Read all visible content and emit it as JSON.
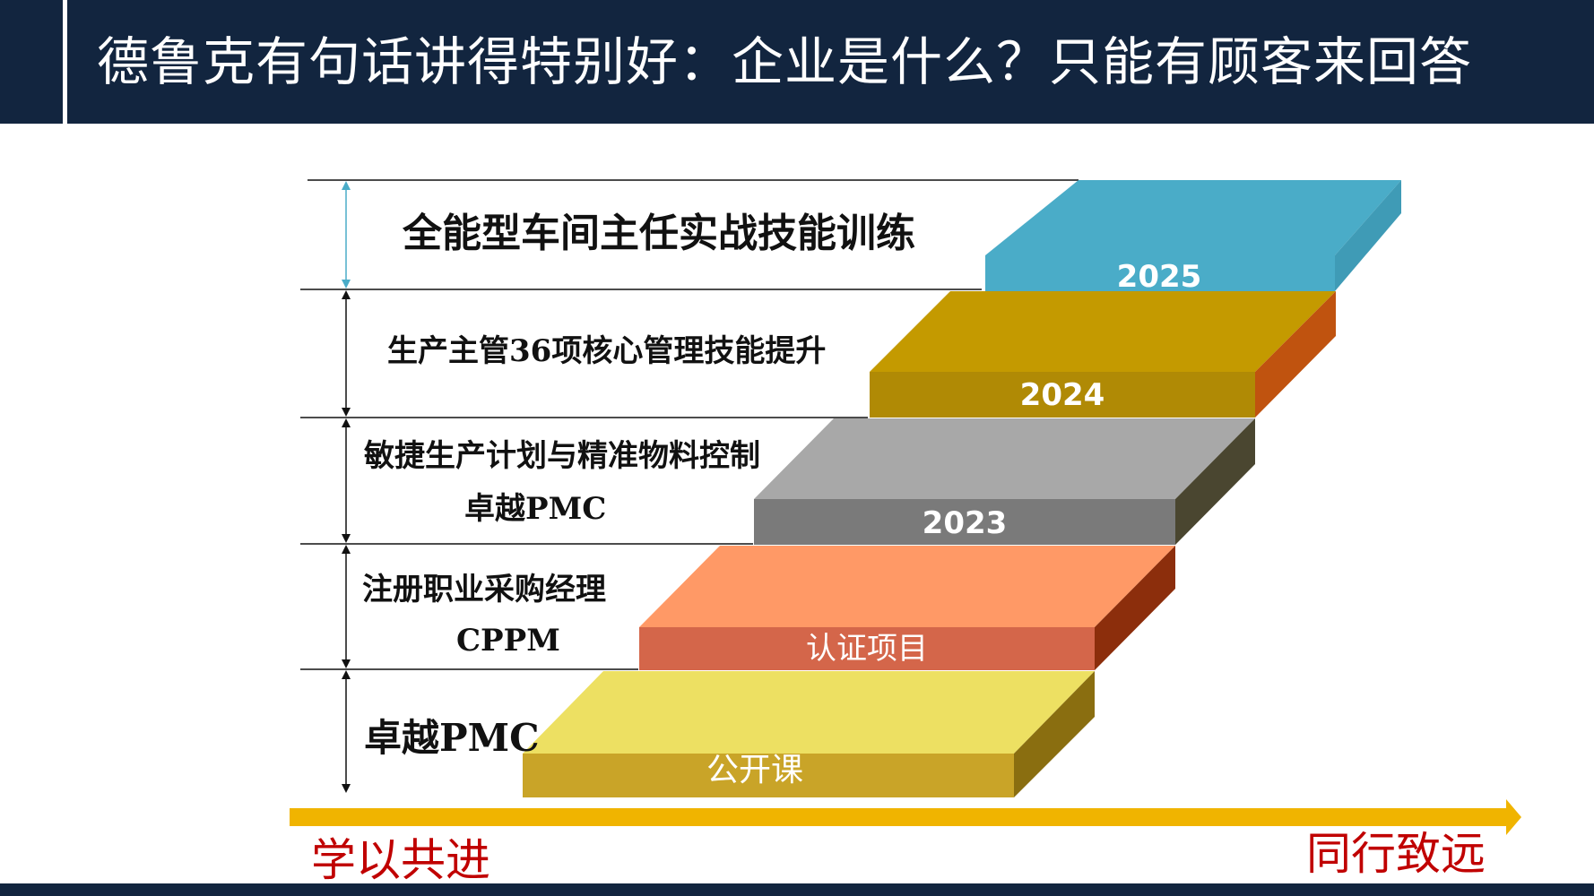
{
  "title": "德鲁克有句话讲得特别好：企业是什么？只能有顾客来回答",
  "levels": [
    {
      "lines": [
        "卓越PMC"
      ],
      "step_label": "公开课"
    },
    {
      "lines": [
        "注册职业采购经理",
        "CPPM"
      ],
      "step_label": "认证项目"
    },
    {
      "lines": [
        "敏捷生产计划与精准物料控制",
        "卓越PMC"
      ],
      "step_label": "2023"
    },
    {
      "lines": [
        "生产主管36项核心管理技能提升"
      ],
      "step_label": "2024"
    },
    {
      "lines": [
        "全能型车间主任实战技能训练"
      ],
      "step_label": "2025"
    }
  ],
  "footer": {
    "left_slogan": "学以共进",
    "right_slogan": "同行致远"
  },
  "colors": {
    "header_bg": "#12253f",
    "arrow": "#f0b400",
    "slogan": "#c00000",
    "steps": [
      {
        "top": "#ede062",
        "front": "#c9a428",
        "side": "#8a6e10"
      },
      {
        "top": "#ff9966",
        "front": "#d4664a",
        "side": "#8c2e0c"
      },
      {
        "top": "#a8a8a8",
        "front": "#7a7a7a",
        "side": "#4a4630"
      },
      {
        "top": "#c49a00",
        "front": "#b08a05",
        "side": "#c0530f"
      },
      {
        "top": "#4aacc8",
        "front": "#4aacc8",
        "side": "#3f9bb6"
      }
    ]
  }
}
